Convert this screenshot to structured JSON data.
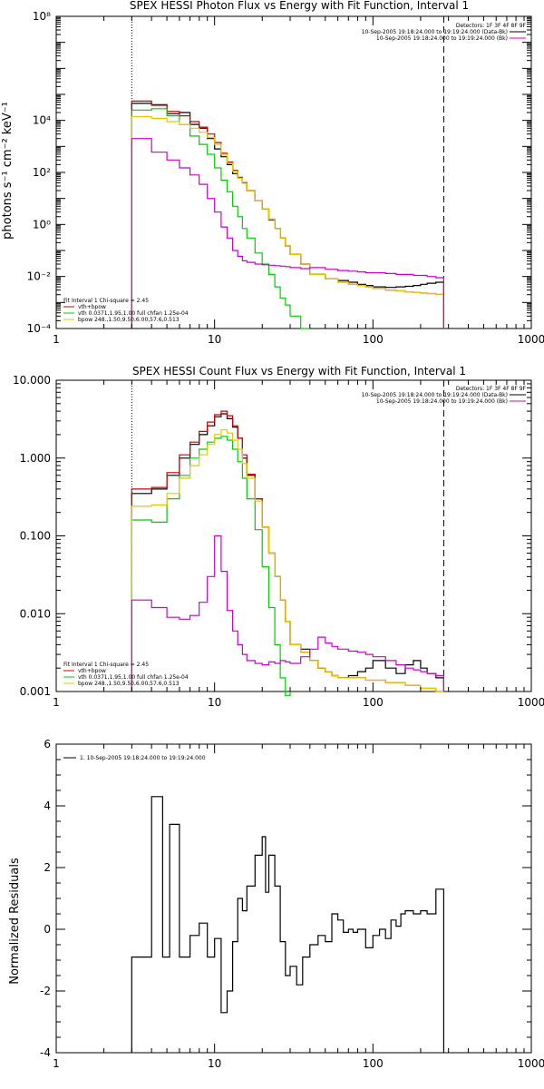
{
  "colors": {
    "total": "#000000",
    "model_sum": "#cc0000",
    "vth": "#00cc00",
    "bpow": "#e6c800",
    "background": "#cc00cc",
    "data": "#000000"
  },
  "chart_data": [
    {
      "type": "line",
      "title": "SPEX HESSI Photon Flux vs Energy with Fit Function, Interval 1",
      "xlabel": "",
      "ylabel": "photons s⁻¹ cm⁻² keV⁻¹",
      "xscale": "log",
      "yscale": "log",
      "xlim": [
        1,
        1000
      ],
      "ylim": [
        0.0001,
        100000000
      ],
      "x_ticks": [
        1,
        10,
        100,
        1000
      ],
      "x_tick_labels": [
        "1",
        "10",
        "100",
        "1000"
      ],
      "y_ticks": [
        0.0001,
        0.01,
        1,
        100,
        10000,
        100000000
      ],
      "y_tick_labels": [
        "10⁻⁴",
        "10⁻²",
        "10⁰",
        "10²",
        "10⁴",
        "10⁸"
      ],
      "vlines": [
        {
          "x": 3,
          "style": "dotted"
        },
        {
          "x": 280,
          "style": "dashed"
        }
      ],
      "legend_right": [
        "Detectors: 1F 3F 4F 8F 9F",
        "10-Sep-2005 19:18:24.000 to 19:19:24.000 (Data-Bk)",
        "10-Sep-2005 19:18:24.000 to 19:19:24.000 (Bk)"
      ],
      "legend_left": [
        "Fit Interval 1    Chi-square = 2.45",
        "vth+bpow",
        "vth 0.0371,1.95,1.00  full chfan 1.25e-04",
        "bpow 248.,1.50,9.50,6.00,57.6,0.513"
      ],
      "series": [
        {
          "name": "Data-Bk",
          "color_key": "total",
          "edges": [
            3,
            4,
            5,
            6,
            7,
            8,
            9,
            10,
            11,
            12,
            13,
            14,
            15,
            16,
            18,
            20,
            22,
            24,
            26,
            28,
            30,
            35,
            40,
            50,
            60,
            70,
            80,
            90,
            100,
            120,
            140,
            160,
            180,
            200,
            220,
            250,
            280
          ],
          "values": [
            45000,
            40000,
            18000,
            20000,
            7000,
            5000,
            2000,
            800,
            400,
            200,
            90,
            60,
            40,
            20,
            8,
            4,
            1.5,
            0.7,
            0.3,
            0.15,
            0.07,
            0.03,
            0.012,
            0.008,
            0.007,
            0.006,
            0.005,
            0.0045,
            0.004,
            0.0038,
            0.004,
            0.0042,
            0.0045,
            0.005,
            0.0055,
            0.006
          ]
        },
        {
          "name": "vth+bpow",
          "color_key": "model_sum",
          "edges": [
            3,
            4,
            5,
            6,
            7,
            8,
            9,
            10,
            11,
            12,
            13,
            14,
            15,
            16,
            18,
            20,
            22,
            24,
            26,
            28,
            30,
            35,
            40,
            50,
            60,
            70,
            80,
            90,
            100,
            120,
            140,
            160,
            180,
            200,
            220,
            250,
            280
          ],
          "values": [
            55000,
            38000,
            22000,
            15000,
            9000,
            5500,
            3000,
            1400,
            550,
            250,
            120,
            65,
            40,
            20,
            8,
            4,
            1.6,
            0.7,
            0.3,
            0.15,
            0.07,
            0.03,
            0.012,
            0.008,
            0.006,
            0.005,
            0.0045,
            0.004,
            0.0035,
            0.003,
            0.0028,
            0.0025,
            0.0024,
            0.0023,
            0.0022,
            0.0021
          ]
        },
        {
          "name": "vth",
          "color_key": "vth",
          "edges": [
            3,
            4,
            5,
            6,
            7,
            8,
            9,
            10,
            11,
            12,
            13,
            14,
            15,
            16,
            18,
            20,
            22,
            24,
            26,
            28,
            30,
            35,
            40
          ],
          "values": [
            25000,
            28000,
            15000,
            7000,
            2500,
            1200,
            500,
            150,
            50,
            18,
            5,
            2,
            0.7,
            0.3,
            0.08,
            0.03,
            0.012,
            0.004,
            0.0015,
            0.0008,
            0.0003,
            0.0001
          ]
        },
        {
          "name": "bpow",
          "color_key": "bpow",
          "edges": [
            3,
            4,
            5,
            6,
            7,
            8,
            9,
            10,
            11,
            12,
            13,
            14,
            15,
            16,
            18,
            20,
            22,
            24,
            26,
            28,
            30,
            35,
            40,
            50,
            60,
            70,
            80,
            90,
            100,
            120,
            140,
            160,
            180,
            200,
            220,
            250,
            280
          ],
          "values": [
            14000,
            12000,
            9000,
            7000,
            5000,
            3500,
            2200,
            1200,
            500,
            230,
            110,
            60,
            38,
            20,
            8,
            4,
            1.6,
            0.7,
            0.3,
            0.15,
            0.07,
            0.03,
            0.012,
            0.008,
            0.006,
            0.005,
            0.0045,
            0.004,
            0.0035,
            0.003,
            0.0028,
            0.0025,
            0.0024,
            0.0023,
            0.0022,
            0.0021
          ]
        },
        {
          "name": "Bk",
          "color_key": "background",
          "edges": [
            3,
            4,
            5,
            6,
            7,
            8,
            9,
            10,
            11,
            12,
            13,
            14,
            15,
            16,
            18,
            20,
            22,
            24,
            26,
            28,
            30,
            35,
            40,
            50,
            60,
            70,
            80,
            90,
            100,
            120,
            140,
            160,
            180,
            200,
            220,
            250,
            280
          ],
          "values": [
            2000,
            600,
            300,
            150,
            80,
            35,
            10,
            3,
            0.8,
            0.3,
            0.1,
            0.06,
            0.04,
            0.035,
            0.03,
            0.028,
            0.027,
            0.026,
            0.025,
            0.024,
            0.022,
            0.02,
            0.022,
            0.019,
            0.017,
            0.016,
            0.015,
            0.014,
            0.014,
            0.013,
            0.012,
            0.012,
            0.011,
            0.011,
            0.01,
            0.009
          ]
        }
      ]
    },
    {
      "type": "line",
      "title": "SPEX HESSI Count Flux vs Energy with Fit Function, Interval 1",
      "xlabel": "",
      "ylabel": "",
      "xscale": "log",
      "yscale": "log",
      "xlim": [
        1,
        1000
      ],
      "ylim": [
        0.001,
        10
      ],
      "x_ticks": [
        1,
        10,
        100,
        1000
      ],
      "x_tick_labels": [
        "1",
        "10",
        "100",
        "1000"
      ],
      "y_ticks": [
        0.001,
        0.01,
        0.1,
        1,
        10
      ],
      "y_tick_labels": [
        "0.001",
        "0.010",
        "0.100",
        "1.000",
        "10.000"
      ],
      "vlines": [
        {
          "x": 3,
          "style": "dotted"
        },
        {
          "x": 280,
          "style": "dashed"
        }
      ],
      "legend_right": [
        "Detectors: 1F 3F 4F 8F 9F",
        "10-Sep-2005 19:18:24.000 to 19:19:24.000 (Data-Bk)",
        "10-Sep-2005 19:18:24.000 to 19:19:24.000 (Bk)"
      ],
      "legend_left": [
        "Fit Interval 1    Chi-square = 2.45",
        "vth+bpow",
        "vth 0.0371,1.95,1.00  full chfan 1.25e-04",
        "bpow 248.,1.50,9.50,6.00,57.6,0.513"
      ],
      "series": [
        {
          "name": "Data-Bk",
          "color_key": "total",
          "edges": [
            3,
            4,
            5,
            6,
            7,
            8,
            9,
            10,
            11,
            12,
            13,
            14,
            15,
            16,
            18,
            20,
            22,
            24,
            26,
            28,
            30,
            35,
            40,
            45,
            50,
            55,
            60,
            70,
            80,
            90,
            100,
            120,
            140,
            160,
            180,
            200,
            220,
            250,
            280
          ],
          "values": [
            0.35,
            0.4,
            0.6,
            1.0,
            1.5,
            2.0,
            2.6,
            3.4,
            3.7,
            3.2,
            2.5,
            1.8,
            1.0,
            0.6,
            0.3,
            0.13,
            0.06,
            0.03,
            0.015,
            0.008,
            0.004,
            0.0035,
            0.0025,
            0.002,
            0.0018,
            0.0016,
            0.0015,
            0.0016,
            0.0018,
            0.002,
            0.0025,
            0.002,
            0.0017,
            0.0022,
            0.0025,
            0.002,
            0.0017,
            0.0015
          ]
        },
        {
          "name": "vth+bpow",
          "color_key": "model_sum",
          "edges": [
            3,
            4,
            5,
            6,
            7,
            8,
            9,
            10,
            11,
            12,
            13,
            14,
            15,
            16,
            18,
            20,
            22,
            24,
            26,
            28,
            30,
            35,
            40,
            45,
            50,
            55,
            60,
            70,
            80,
            90,
            100,
            120,
            140,
            160,
            180,
            200,
            220,
            250,
            280
          ],
          "values": [
            0.4,
            0.42,
            0.65,
            1.1,
            1.6,
            2.2,
            2.9,
            3.6,
            4.0,
            3.5,
            2.6,
            1.8,
            1.1,
            0.62,
            0.3,
            0.13,
            0.06,
            0.03,
            0.015,
            0.008,
            0.004,
            0.0032,
            0.0025,
            0.002,
            0.0018,
            0.0016,
            0.0015,
            0.0015,
            0.0015,
            0.0014,
            0.0014,
            0.0013,
            0.0013,
            0.0012,
            0.0012,
            0.0011,
            0.0011,
            0.001
          ]
        },
        {
          "name": "vth",
          "color_key": "vth",
          "edges": [
            3,
            4,
            5,
            6,
            7,
            8,
            9,
            10,
            11,
            12,
            13,
            14,
            15,
            16,
            18,
            20,
            22,
            24,
            26,
            28,
            30
          ],
          "values": [
            0.16,
            0.15,
            0.3,
            0.6,
            1.0,
            1.3,
            1.6,
            1.8,
            1.9,
            1.7,
            1.3,
            0.9,
            0.55,
            0.3,
            0.12,
            0.04,
            0.012,
            0.004,
            0.0015,
            0.0005
          ]
        },
        {
          "name": "bpow",
          "color_key": "bpow",
          "edges": [
            3,
            4,
            5,
            6,
            7,
            8,
            9,
            10,
            11,
            12,
            13,
            14,
            15,
            16,
            18,
            20,
            22,
            24,
            26,
            28,
            30,
            35,
            40,
            45,
            50,
            55,
            60,
            70,
            80,
            90,
            100,
            120,
            140,
            160,
            180,
            200,
            220,
            250,
            280
          ],
          "values": [
            0.24,
            0.25,
            0.35,
            0.55,
            0.8,
            1.1,
            1.5,
            2.0,
            2.3,
            2.1,
            1.7,
            1.3,
            0.85,
            0.55,
            0.28,
            0.13,
            0.06,
            0.03,
            0.015,
            0.008,
            0.004,
            0.0032,
            0.0025,
            0.002,
            0.0018,
            0.0016,
            0.0015,
            0.0015,
            0.0015,
            0.0014,
            0.0014,
            0.0013,
            0.0013,
            0.0012,
            0.0012,
            0.0011,
            0.0011,
            0.001
          ]
        },
        {
          "name": "Bk",
          "color_key": "background",
          "edges": [
            3,
            4,
            5,
            6,
            7,
            8,
            9,
            10,
            11,
            12,
            13,
            14,
            15,
            16,
            18,
            20,
            22,
            24,
            26,
            28,
            30,
            35,
            40,
            45,
            50,
            55,
            60,
            70,
            80,
            90,
            100,
            120,
            140,
            160,
            180,
            200,
            220,
            250,
            280
          ],
          "values": [
            0.015,
            0.012,
            0.009,
            0.0085,
            0.0095,
            0.014,
            0.03,
            0.1,
            0.035,
            0.011,
            0.006,
            0.004,
            0.003,
            0.0025,
            0.0023,
            0.0022,
            0.0024,
            0.0023,
            0.0025,
            0.0024,
            0.0023,
            0.0028,
            0.0035,
            0.005,
            0.0042,
            0.0038,
            0.0035,
            0.0033,
            0.0032,
            0.003,
            0.0028,
            0.0025,
            0.0022,
            0.002,
            0.0019,
            0.0018,
            0.0017,
            0.0016
          ]
        }
      ]
    },
    {
      "type": "line",
      "title": "",
      "xlabel": "",
      "ylabel": "Normalized Residuals",
      "xscale": "log",
      "yscale": "linear",
      "xlim": [
        1,
        1000
      ],
      "ylim": [
        -4,
        6
      ],
      "x_ticks": [
        1,
        10,
        100,
        1000
      ],
      "x_tick_labels": [
        "1",
        "10",
        "100",
        "1000"
      ],
      "y_ticks": [
        -4,
        -2,
        0,
        2,
        4,
        6
      ],
      "y_tick_labels": [
        "-4",
        "-2",
        "0",
        "2",
        "4",
        "6"
      ],
      "legend_left": [
        "1. 10-Sep-2005 19:18:24.000 to 19:19:24.000"
      ],
      "series": [
        {
          "name": "1. 10-Sep-2005 19:18:24.000 to 19:19:24.000",
          "color_key": "data",
          "edges": [
            3,
            4,
            4.7,
            5.2,
            6,
            7,
            8,
            9,
            10,
            11,
            12,
            13,
            14,
            15,
            16,
            18,
            20,
            21,
            22,
            24,
            26,
            28,
            30,
            33,
            36,
            40,
            45,
            50,
            55,
            60,
            65,
            70,
            75,
            80,
            90,
            100,
            110,
            120,
            130,
            140,
            150,
            160,
            180,
            200,
            220,
            250,
            280
          ],
          "values": [
            -0.9,
            4.3,
            -0.9,
            3.4,
            -0.9,
            -0.2,
            0.2,
            -0.9,
            -0.3,
            -2.7,
            -2.0,
            -0.4,
            1.0,
            0.6,
            1.4,
            2.4,
            3.0,
            1.2,
            2.4,
            1.4,
            -0.4,
            -1.5,
            -1.2,
            -1.8,
            -0.9,
            -0.5,
            -0.2,
            -0.4,
            0.5,
            0.3,
            -0.1,
            0.0,
            -0.1,
            0.0,
            -0.6,
            -0.2,
            0.0,
            -0.3,
            0.3,
            0.1,
            0.5,
            0.6,
            0.5,
            0.6,
            0.5,
            1.3
          ]
        }
      ]
    }
  ]
}
